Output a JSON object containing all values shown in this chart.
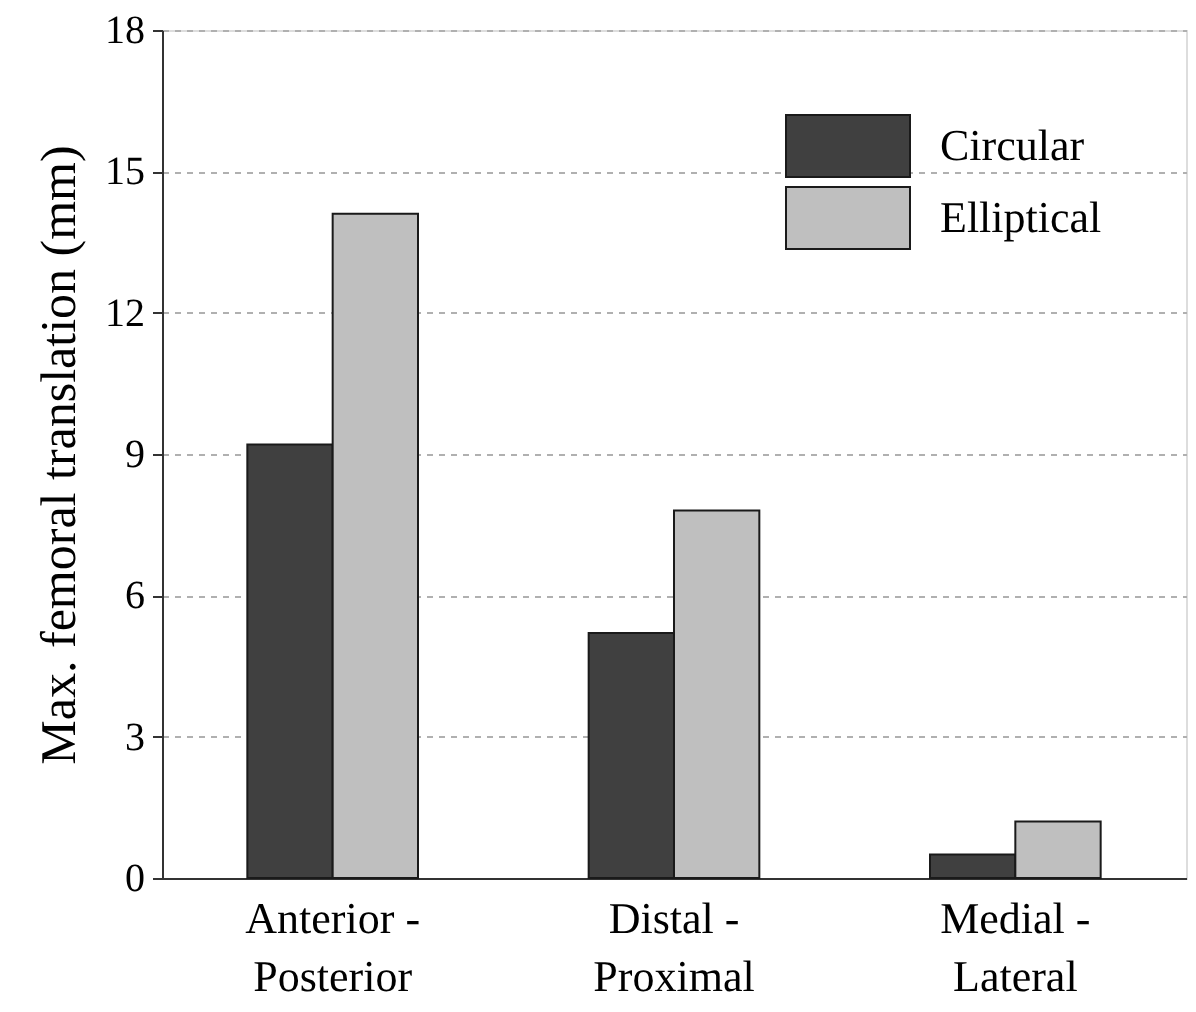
{
  "chart_data": {
    "type": "bar",
    "ylabel": "Max. femoral translation (mm)",
    "categories": [
      "Anterior -\nPosterior",
      "Distal -\nProximal",
      "Medial -\nLateral"
    ],
    "series": [
      {
        "name": "Circular",
        "color": "#404040",
        "values": [
          9.2,
          5.2,
          0.5
        ]
      },
      {
        "name": "Elliptical",
        "color": "#bfbfbf",
        "values": [
          14.1,
          7.8,
          1.2
        ]
      }
    ],
    "ylim": [
      0,
      18
    ],
    "yticks": [
      0,
      3,
      6,
      9,
      12,
      15,
      18
    ],
    "grid": "y",
    "legend": "top right"
  }
}
